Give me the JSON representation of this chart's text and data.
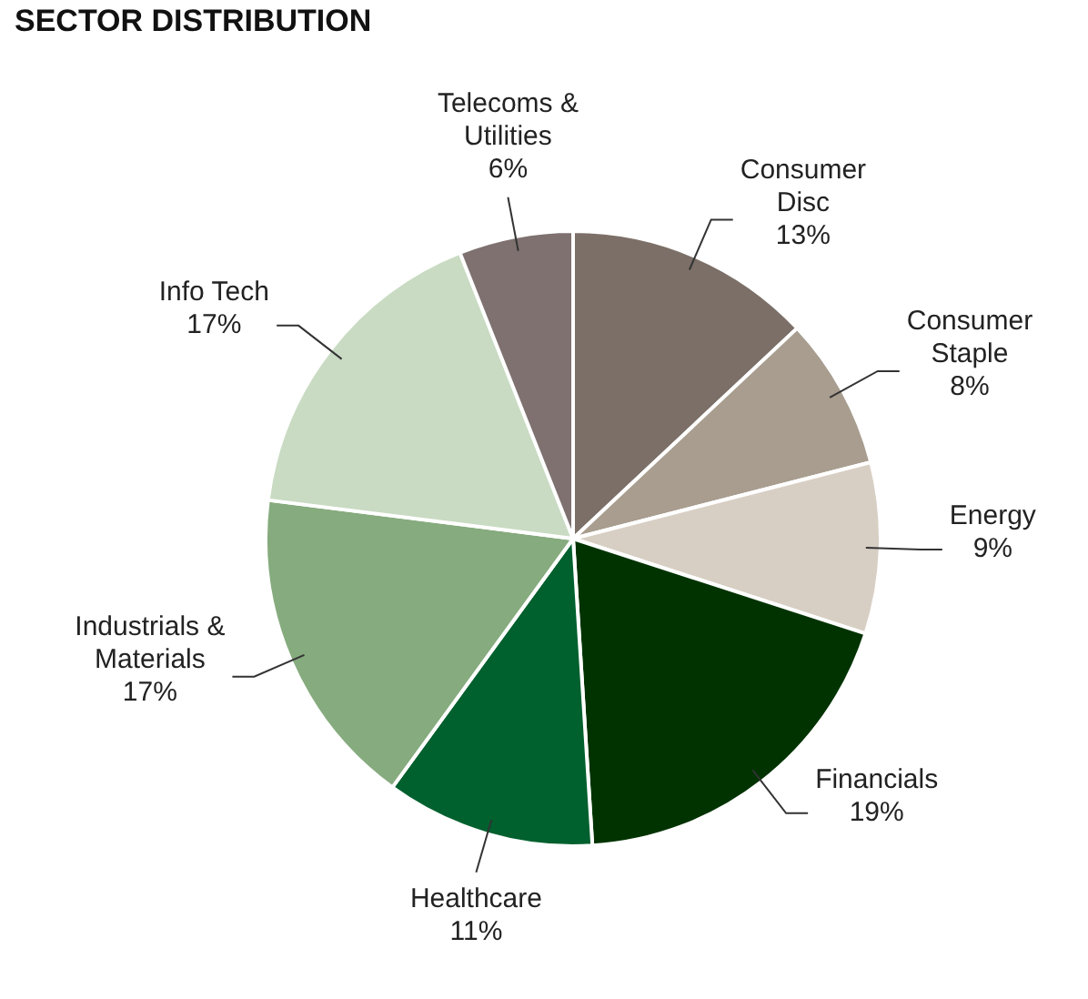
{
  "chart_data": {
    "type": "pie",
    "title": "SECTOR DISTRIBUTION",
    "categories": [
      "Consumer\nDisc",
      "Consumer\nStaple",
      "Energy",
      "Financials",
      "Healthcare",
      "Industrials &\nMaterials",
      "Info Tech",
      "Telecoms &\nUtilities"
    ],
    "values": [
      13,
      8,
      9,
      19,
      11,
      17,
      17,
      6
    ],
    "value_labels": [
      "13%",
      "8%",
      "9%",
      "19%",
      "11%",
      "17%",
      "17%",
      "6%"
    ],
    "colors": [
      "#7b6f67",
      "#a89d8f",
      "#d8cfc4",
      "#003300",
      "#00602e",
      "#86ab7e",
      "#c9dbc3",
      "#7e7170"
    ],
    "legend": false
  }
}
